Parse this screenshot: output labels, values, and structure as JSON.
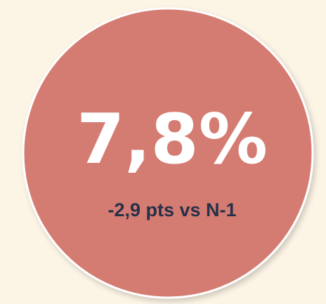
{
  "kpi": {
    "value": "7,8%",
    "delta": "-2,9 pts vs N-1"
  }
}
